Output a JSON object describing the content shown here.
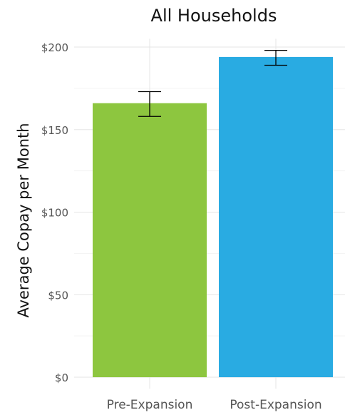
{
  "chart_data": {
    "type": "bar",
    "title": "All Households",
    "xlabel": "",
    "ylabel": "Average Copay per Month",
    "categories": [
      "Pre-Expansion",
      "Post-Expansion"
    ],
    "values": [
      166,
      194
    ],
    "error_bars": [
      {
        "low": 158,
        "high": 173
      },
      {
        "low": 189,
        "high": 198
      }
    ],
    "colors": [
      "#8dc63f",
      "#29abe2"
    ],
    "ylim": [
      0,
      205
    ],
    "yticks": [
      0,
      50,
      100,
      150,
      200
    ],
    "ytick_labels": [
      "$0",
      "$50",
      "$100",
      "$150",
      "$200"
    ],
    "grid": true,
    "legend": "none"
  }
}
